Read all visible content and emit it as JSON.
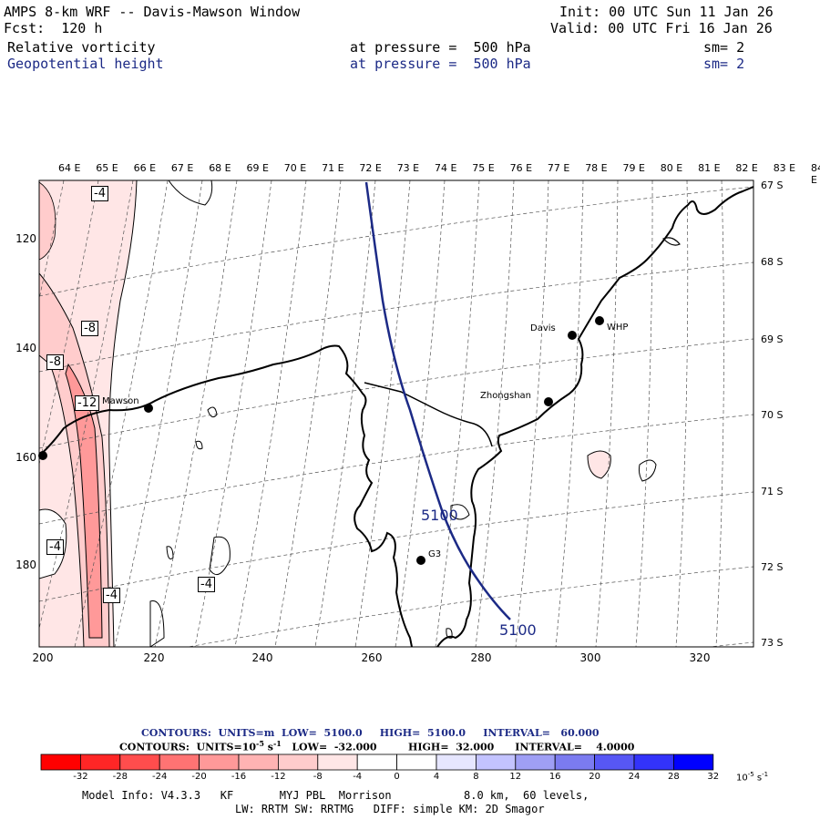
{
  "header": {
    "title": "AMPS 8-km WRF -- Davis-Mawson Window",
    "init": "Init: 00 UTC Sun 11 Jan 26",
    "fcst": "Fcst:  120 h",
    "valid": "Valid: 00 UTC Fri 16 Jan 26",
    "field1": "Relative vorticity",
    "field1_level": "at pressure =  500 hPa",
    "field1_sm": "sm= 2",
    "field2": "Geopotential height",
    "field2_level": "at pressure =  500 hPa",
    "field2_sm": "sm= 2"
  },
  "map": {
    "lon_labels": [
      "64 E",
      "65 E",
      "66 E",
      "67 E",
      "68 E",
      "69 E",
      "70 E",
      "71 E",
      "72 E",
      "73 E",
      "74 E",
      "75 E",
      "76 E",
      "77 E",
      "78 E",
      "79 E",
      "80 E",
      "81 E",
      "82 E",
      "83 E",
      "84 E"
    ],
    "lat_labels": [
      "67 S",
      "68 S",
      "69 S",
      "70 S",
      "71 S",
      "72 S",
      "73 S"
    ],
    "y_ticks": [
      "120",
      "140",
      "160",
      "180"
    ],
    "x_ticks": [
      "200",
      "220",
      "240",
      "260",
      "280",
      "300",
      "320"
    ],
    "stations": {
      "mawson": "Mawson",
      "davis": "Davis",
      "whp": "WHP",
      "zhongshan": "Zhongshan",
      "g3": "G3"
    },
    "contour_labels": {
      "vort_a": "-4",
      "vort_b": "-8",
      "vort_c": "-8",
      "vort_d": "-12",
      "vort_e": "-4",
      "vort_f": "-4",
      "vort_g": "-4",
      "height_a": "5100",
      "height_b": "5100"
    }
  },
  "info": {
    "line1": "CONTOURS:  UNITS=m  LOW=  5100.0     HIGH=  5100.0     INTERVAL=   60.000",
    "line2_pre": "CONTOURS:  UNITS=10",
    "line2_exp": "-5",
    "line2_unit": " s",
    "line2_exp2": "-1",
    "line2_post": "   LOW=  -32.000         HIGH=  32.000      INTERVAL=    4.0000"
  },
  "colorbar": {
    "labels": [
      "-32",
      "-28",
      "-24",
      "-20",
      "-16",
      "-12",
      "-8",
      "-4",
      "0",
      "4",
      "8",
      "12",
      "16",
      "20",
      "24",
      "28",
      "32"
    ],
    "unit_base": "10",
    "unit_exp": "-5",
    "unit_s": "s",
    "unit_s_exp": "-1",
    "colors": [
      "#ff0000",
      "#ff2626",
      "#ff4d4d",
      "#ff7373",
      "#ff9999",
      "#ffb3b3",
      "#ffcccc",
      "#ffe6e6",
      "#ffffff",
      "#ffffff",
      "#e6e6ff",
      "#c3c3ff",
      "#9f9ff5",
      "#7b7bf0",
      "#5757f5",
      "#3333fa",
      "#0000ff"
    ]
  },
  "footer": {
    "line1": "Model Info: V4.3.3   KF       MYJ PBL  Morrison           8.0 km,  60 levels,",
    "line2": "LW: RRTM SW: RRTMG   DIFF: simple KM: 2D Smagor"
  }
}
